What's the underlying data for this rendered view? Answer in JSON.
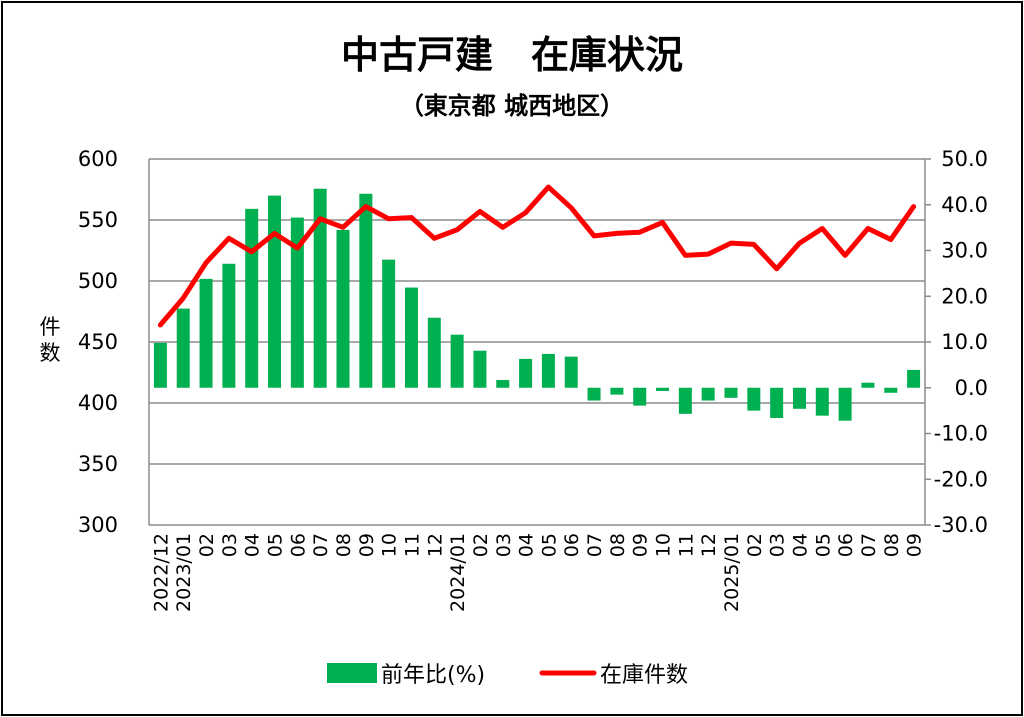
{
  "chart_data": {
    "type": "bar+line",
    "title": "中古戸建　在庫状況",
    "subtitle": "（東京都 城西地区）",
    "ylabel": "件数",
    "ylabel_chars": [
      "件",
      "数"
    ],
    "ylim": [
      300,
      600
    ],
    "y2lim": [
      -30,
      50
    ],
    "yticks": [
      "300",
      "350",
      "400",
      "450",
      "500",
      "550",
      "600"
    ],
    "y2ticks": [
      "-30.0",
      "-20.0",
      "-10.0",
      "0.0",
      "10.0",
      "20.0",
      "30.0",
      "40.0",
      "50.0"
    ],
    "grid": true,
    "categories": [
      "2022/12",
      "2023/01",
      "02",
      "03",
      "04",
      "05",
      "06",
      "07",
      "08",
      "09",
      "10",
      "11",
      "12",
      "2024/01",
      "02",
      "03",
      "04",
      "05",
      "06",
      "07",
      "08",
      "09",
      "10",
      "11",
      "12",
      "2025/01",
      "02",
      "03",
      "04",
      "05",
      "06",
      "07",
      "08",
      "09"
    ],
    "series": [
      {
        "name": "前年比(%)",
        "type": "bar",
        "axis": "right",
        "color": "#00b050",
        "values": [
          9.8,
          17.3,
          23.8,
          27.1,
          39.1,
          42.0,
          37.2,
          43.5,
          34.5,
          42.4,
          28.0,
          21.9,
          15.3,
          11.6,
          8.1,
          1.7,
          6.3,
          7.4,
          6.8,
          -2.8,
          -1.5,
          -3.9,
          -0.7,
          -5.7,
          -2.8,
          -2.2,
          -5.0,
          -6.6,
          -4.6,
          -6.1,
          -7.2,
          1.1,
          -1.1,
          3.9
        ]
      },
      {
        "name": "在庫件数",
        "type": "line",
        "axis": "left",
        "color": "#ff0000",
        "values": [
          464,
          486,
          515,
          535,
          524,
          539,
          527,
          551,
          544,
          561,
          551,
          552,
          535,
          542,
          557,
          544,
          556,
          577,
          560,
          537,
          539,
          540,
          548,
          521,
          522,
          531,
          530,
          510,
          531,
          543,
          521,
          543,
          534,
          561
        ]
      }
    ],
    "legend_position": "bottom",
    "negative_tick_color": "#e02020"
  }
}
